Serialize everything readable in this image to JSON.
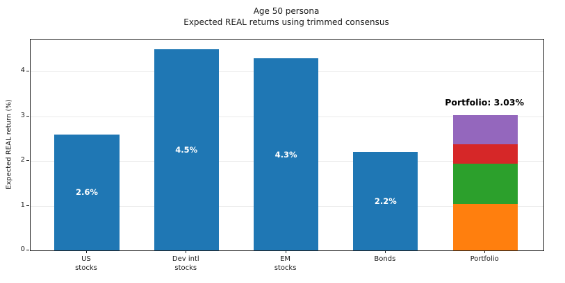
{
  "chart_data": {
    "type": "bar",
    "title_lines": [
      "Age 50 persona",
      "Expected REAL returns using trimmed consensus"
    ],
    "ylabel": "Expected REAL return (%)",
    "xlabel": "",
    "categories": [
      [
        "US",
        "stocks"
      ],
      [
        "Dev intl",
        "stocks"
      ],
      [
        "EM",
        "stocks"
      ],
      [
        "Bonds"
      ],
      [
        "Portfolio"
      ]
    ],
    "values": [
      2.6,
      4.5,
      4.3,
      2.2,
      3.03
    ],
    "bar_labels": [
      "2.6%",
      "4.5%",
      "4.3%",
      "2.2%",
      null
    ],
    "bar_color": "#1f77b4",
    "label_color": "#ffffff",
    "stacked_bar": {
      "index": 4,
      "total": 3.03,
      "segments": [
        {
          "name": "us-stocks-contribution",
          "value": 1.04,
          "color": "#ff7f0e"
        },
        {
          "name": "dev-intl-stocks-contribution",
          "value": 0.9,
          "color": "#2ca02c"
        },
        {
          "name": "em-stocks-contribution",
          "value": 0.43,
          "color": "#d62728"
        },
        {
          "name": "bonds-contribution",
          "value": 0.66,
          "color": "#9467bd"
        }
      ]
    },
    "annotation": {
      "text": "Portfolio: 3.03%",
      "x_index": 4
    },
    "yticks": [
      0,
      1,
      2,
      3,
      4
    ],
    "ylim": [
      0,
      4.72
    ],
    "xlim": [
      -0.565,
      4.585
    ],
    "bar_width": 0.65,
    "grid": "y",
    "grid_color": "#e9e9e9",
    "legend": "none"
  }
}
